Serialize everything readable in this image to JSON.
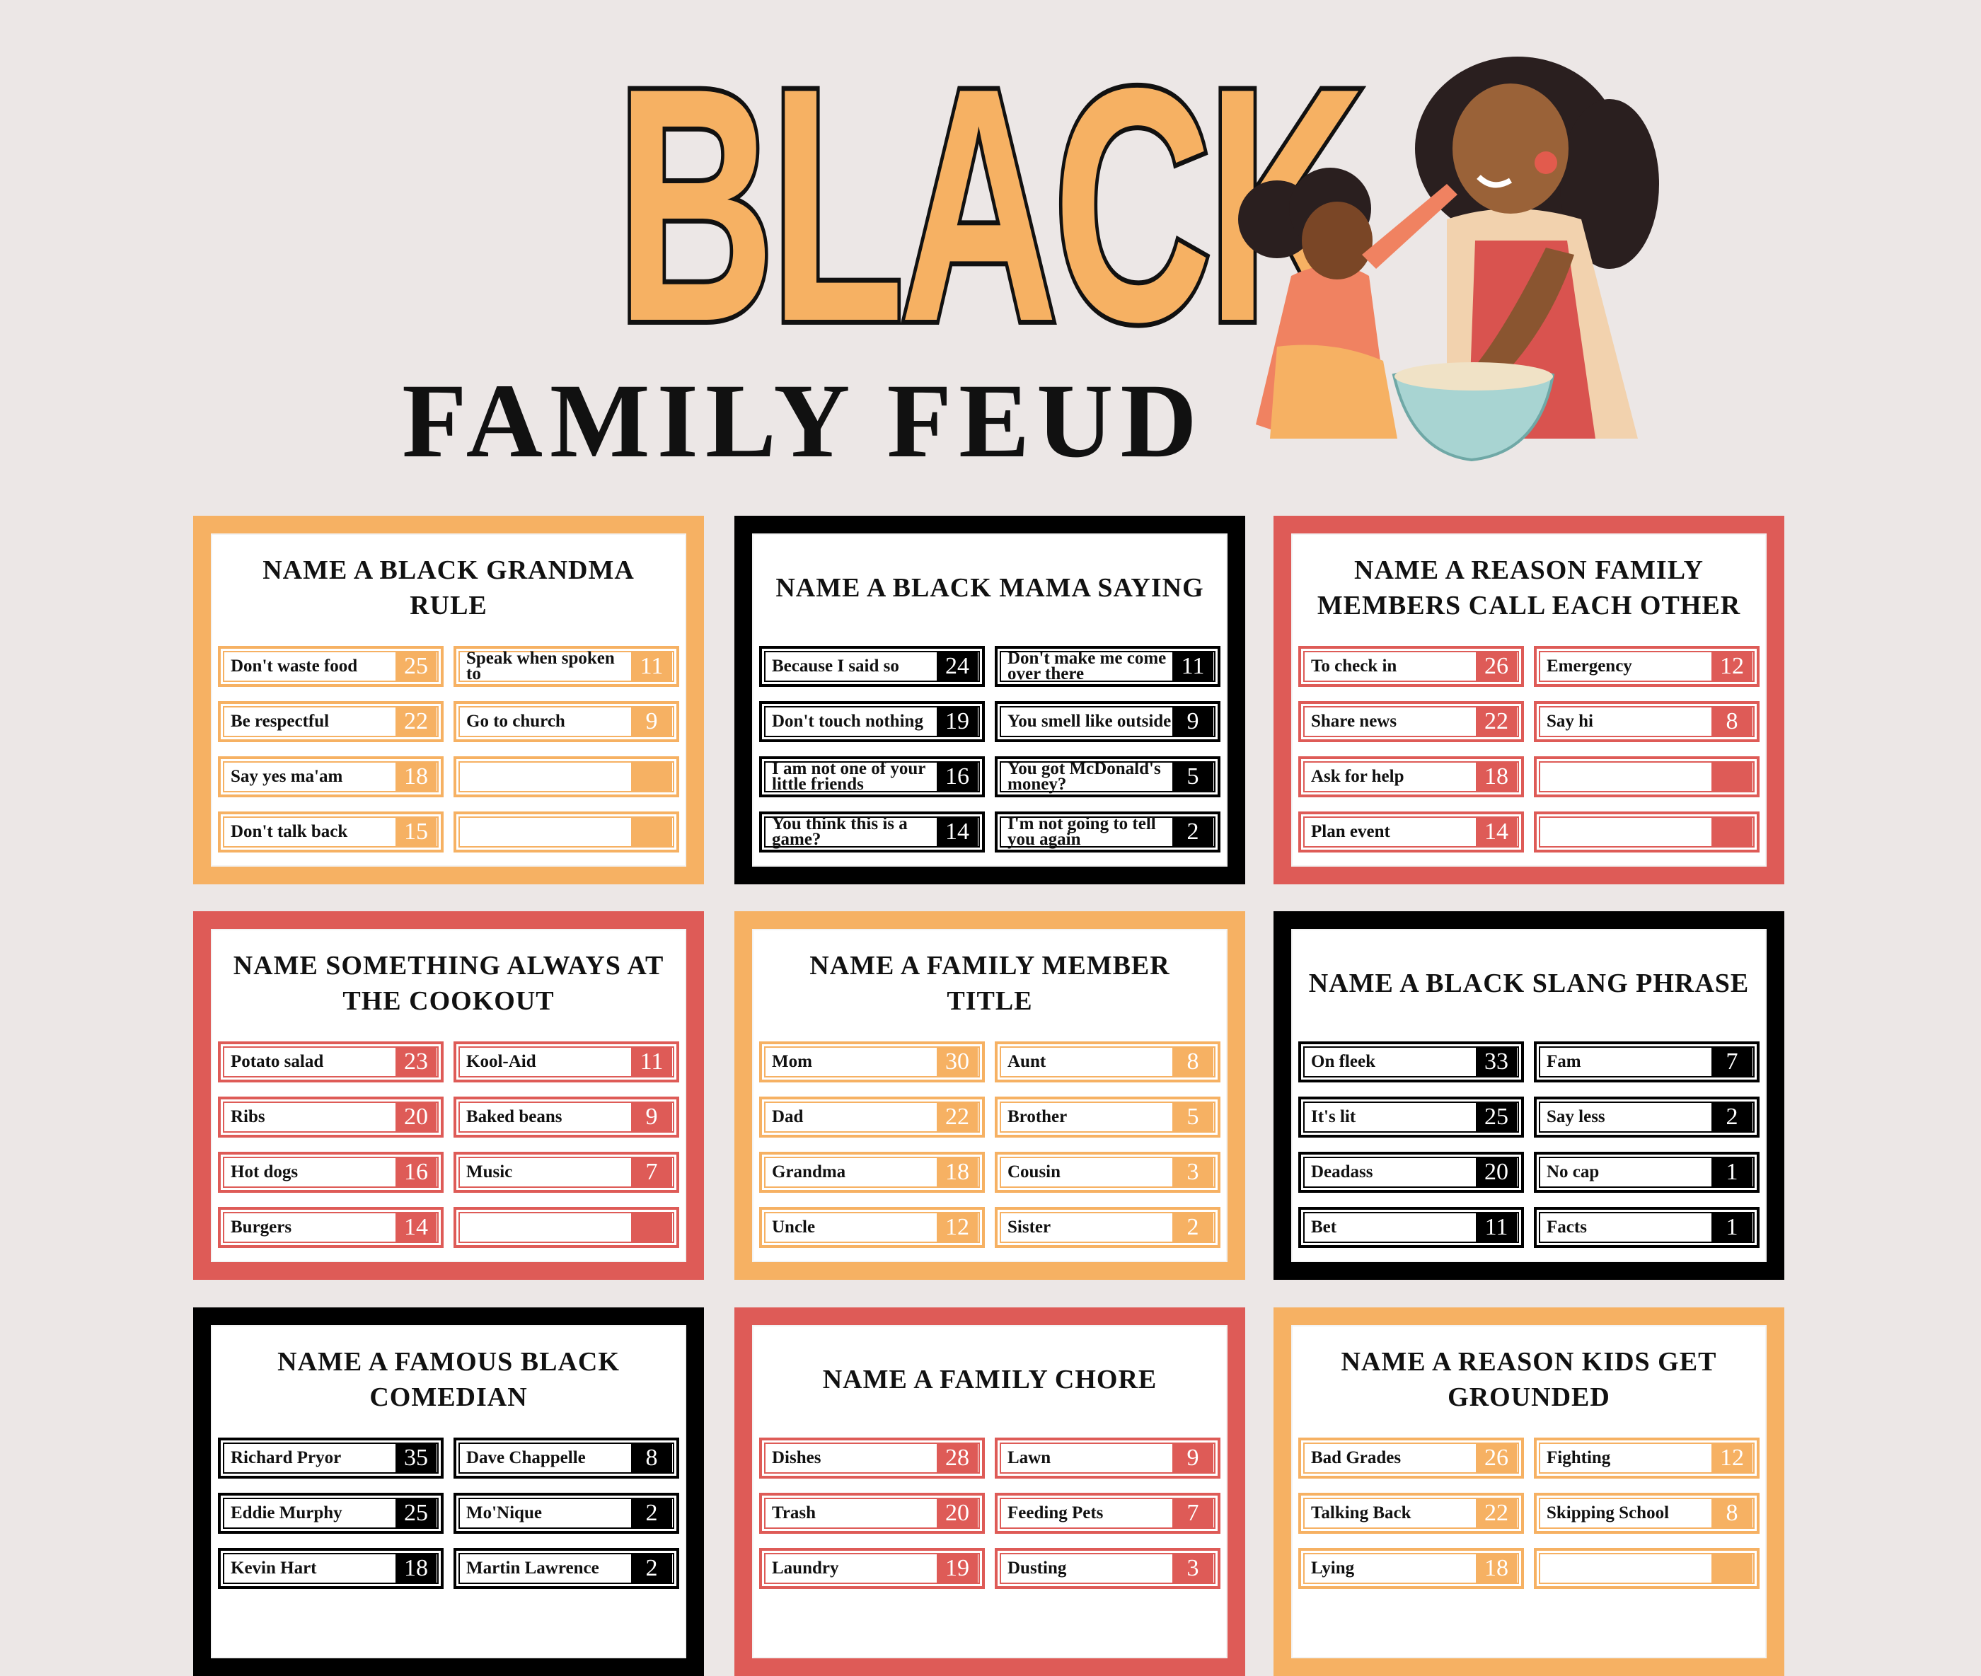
{
  "header": {
    "title_main": "BLACK",
    "title_sub": "FAMILY FEUD",
    "illustration": "mother-and-daughter-baking"
  },
  "colors": {
    "orange": "#F6B163",
    "red": "#DE5B57",
    "black": "#000000",
    "background": "#ECE7E6"
  },
  "cards": [
    {
      "theme": "orange",
      "question": "NAME A BLACK GRANDMA RULE",
      "answers": [
        {
          "text": "Don't waste food",
          "points": "25"
        },
        {
          "text": "Speak when spoken to",
          "points": "11"
        },
        {
          "text": "Be respectful",
          "points": "22"
        },
        {
          "text": "Go to church",
          "points": "9"
        },
        {
          "text": "Say yes ma'am",
          "points": "18"
        },
        {
          "text": "",
          "points": ""
        },
        {
          "text": "Don't talk back",
          "points": "15"
        },
        {
          "text": "",
          "points": ""
        }
      ]
    },
    {
      "theme": "black",
      "question": "NAME A BLACK MAMA SAYING",
      "answers": [
        {
          "text": "Because I said so",
          "points": "24"
        },
        {
          "text": "Don't make me come over there",
          "points": "11"
        },
        {
          "text": "Don't touch nothing",
          "points": "19"
        },
        {
          "text": "You smell like outside",
          "points": "9"
        },
        {
          "text": "I am not one of your little friends",
          "points": "16"
        },
        {
          "text": "You got McDonald's money?",
          "points": "5"
        },
        {
          "text": "You think this is a game?",
          "points": "14"
        },
        {
          "text": "I'm not going to tell you again",
          "points": "2"
        }
      ]
    },
    {
      "theme": "red",
      "question": "NAME A REASON FAMILY MEMBERS CALL EACH OTHER",
      "answers": [
        {
          "text": "To check in",
          "points": "26"
        },
        {
          "text": "Emergency",
          "points": "12"
        },
        {
          "text": "Share news",
          "points": "22"
        },
        {
          "text": "Say hi",
          "points": "8"
        },
        {
          "text": "Ask for help",
          "points": "18"
        },
        {
          "text": "",
          "points": ""
        },
        {
          "text": "Plan event",
          "points": "14"
        },
        {
          "text": "",
          "points": ""
        }
      ]
    },
    {
      "theme": "red",
      "question": "NAME SOMETHING ALWAYS AT THE COOKOUT",
      "answers": [
        {
          "text": "Potato salad",
          "points": "23"
        },
        {
          "text": "Kool-Aid",
          "points": "11"
        },
        {
          "text": "Ribs",
          "points": "20"
        },
        {
          "text": "Baked beans",
          "points": "9"
        },
        {
          "text": "Hot dogs",
          "points": "16"
        },
        {
          "text": "Music",
          "points": "7"
        },
        {
          "text": "Burgers",
          "points": "14"
        },
        {
          "text": "",
          "points": ""
        }
      ]
    },
    {
      "theme": "orange",
      "question": "NAME A FAMILY MEMBER TITLE",
      "answers": [
        {
          "text": "Mom",
          "points": "30"
        },
        {
          "text": "Aunt",
          "points": "8"
        },
        {
          "text": "Dad",
          "points": "22"
        },
        {
          "text": "Brother",
          "points": "5"
        },
        {
          "text": "Grandma",
          "points": "18"
        },
        {
          "text": "Cousin",
          "points": "3"
        },
        {
          "text": "Uncle",
          "points": "12"
        },
        {
          "text": "Sister",
          "points": "2"
        }
      ]
    },
    {
      "theme": "black",
      "question": "NAME A BLACK SLANG PHRASE",
      "answers": [
        {
          "text": "On fleek",
          "points": "33"
        },
        {
          "text": "Fam",
          "points": "7"
        },
        {
          "text": "It's lit",
          "points": "25"
        },
        {
          "text": "Say less",
          "points": "2"
        },
        {
          "text": "Deadass",
          "points": "20"
        },
        {
          "text": "No cap",
          "points": "1"
        },
        {
          "text": "Bet",
          "points": "11"
        },
        {
          "text": "Facts",
          "points": "1"
        }
      ]
    },
    {
      "theme": "black",
      "question": "NAME A FAMOUS BLACK COMEDIAN",
      "answers": [
        {
          "text": "Richard Pryor",
          "points": "35"
        },
        {
          "text": "Dave Chappelle",
          "points": "8"
        },
        {
          "text": "Eddie Murphy",
          "points": "25"
        },
        {
          "text": "Mo'Nique",
          "points": "2"
        },
        {
          "text": "Kevin Hart",
          "points": "18"
        },
        {
          "text": "Martin Lawrence",
          "points": "2"
        }
      ]
    },
    {
      "theme": "red",
      "question": "NAME A FAMILY CHORE",
      "answers": [
        {
          "text": "Dishes",
          "points": "28"
        },
        {
          "text": "Lawn",
          "points": "9"
        },
        {
          "text": "Trash",
          "points": "20"
        },
        {
          "text": "Feeding Pets",
          "points": "7"
        },
        {
          "text": "Laundry",
          "points": "19"
        },
        {
          "text": "Dusting",
          "points": "3"
        }
      ]
    },
    {
      "theme": "orange",
      "question": "NAME A REASON KIDS GET GROUNDED",
      "answers": [
        {
          "text": "Bad Grades",
          "points": "26"
        },
        {
          "text": "Fighting",
          "points": "12"
        },
        {
          "text": "Talking Back",
          "points": "22"
        },
        {
          "text": "Skipping School",
          "points": "8"
        },
        {
          "text": "Lying",
          "points": "18"
        },
        {
          "text": "",
          "points": ""
        }
      ]
    }
  ]
}
